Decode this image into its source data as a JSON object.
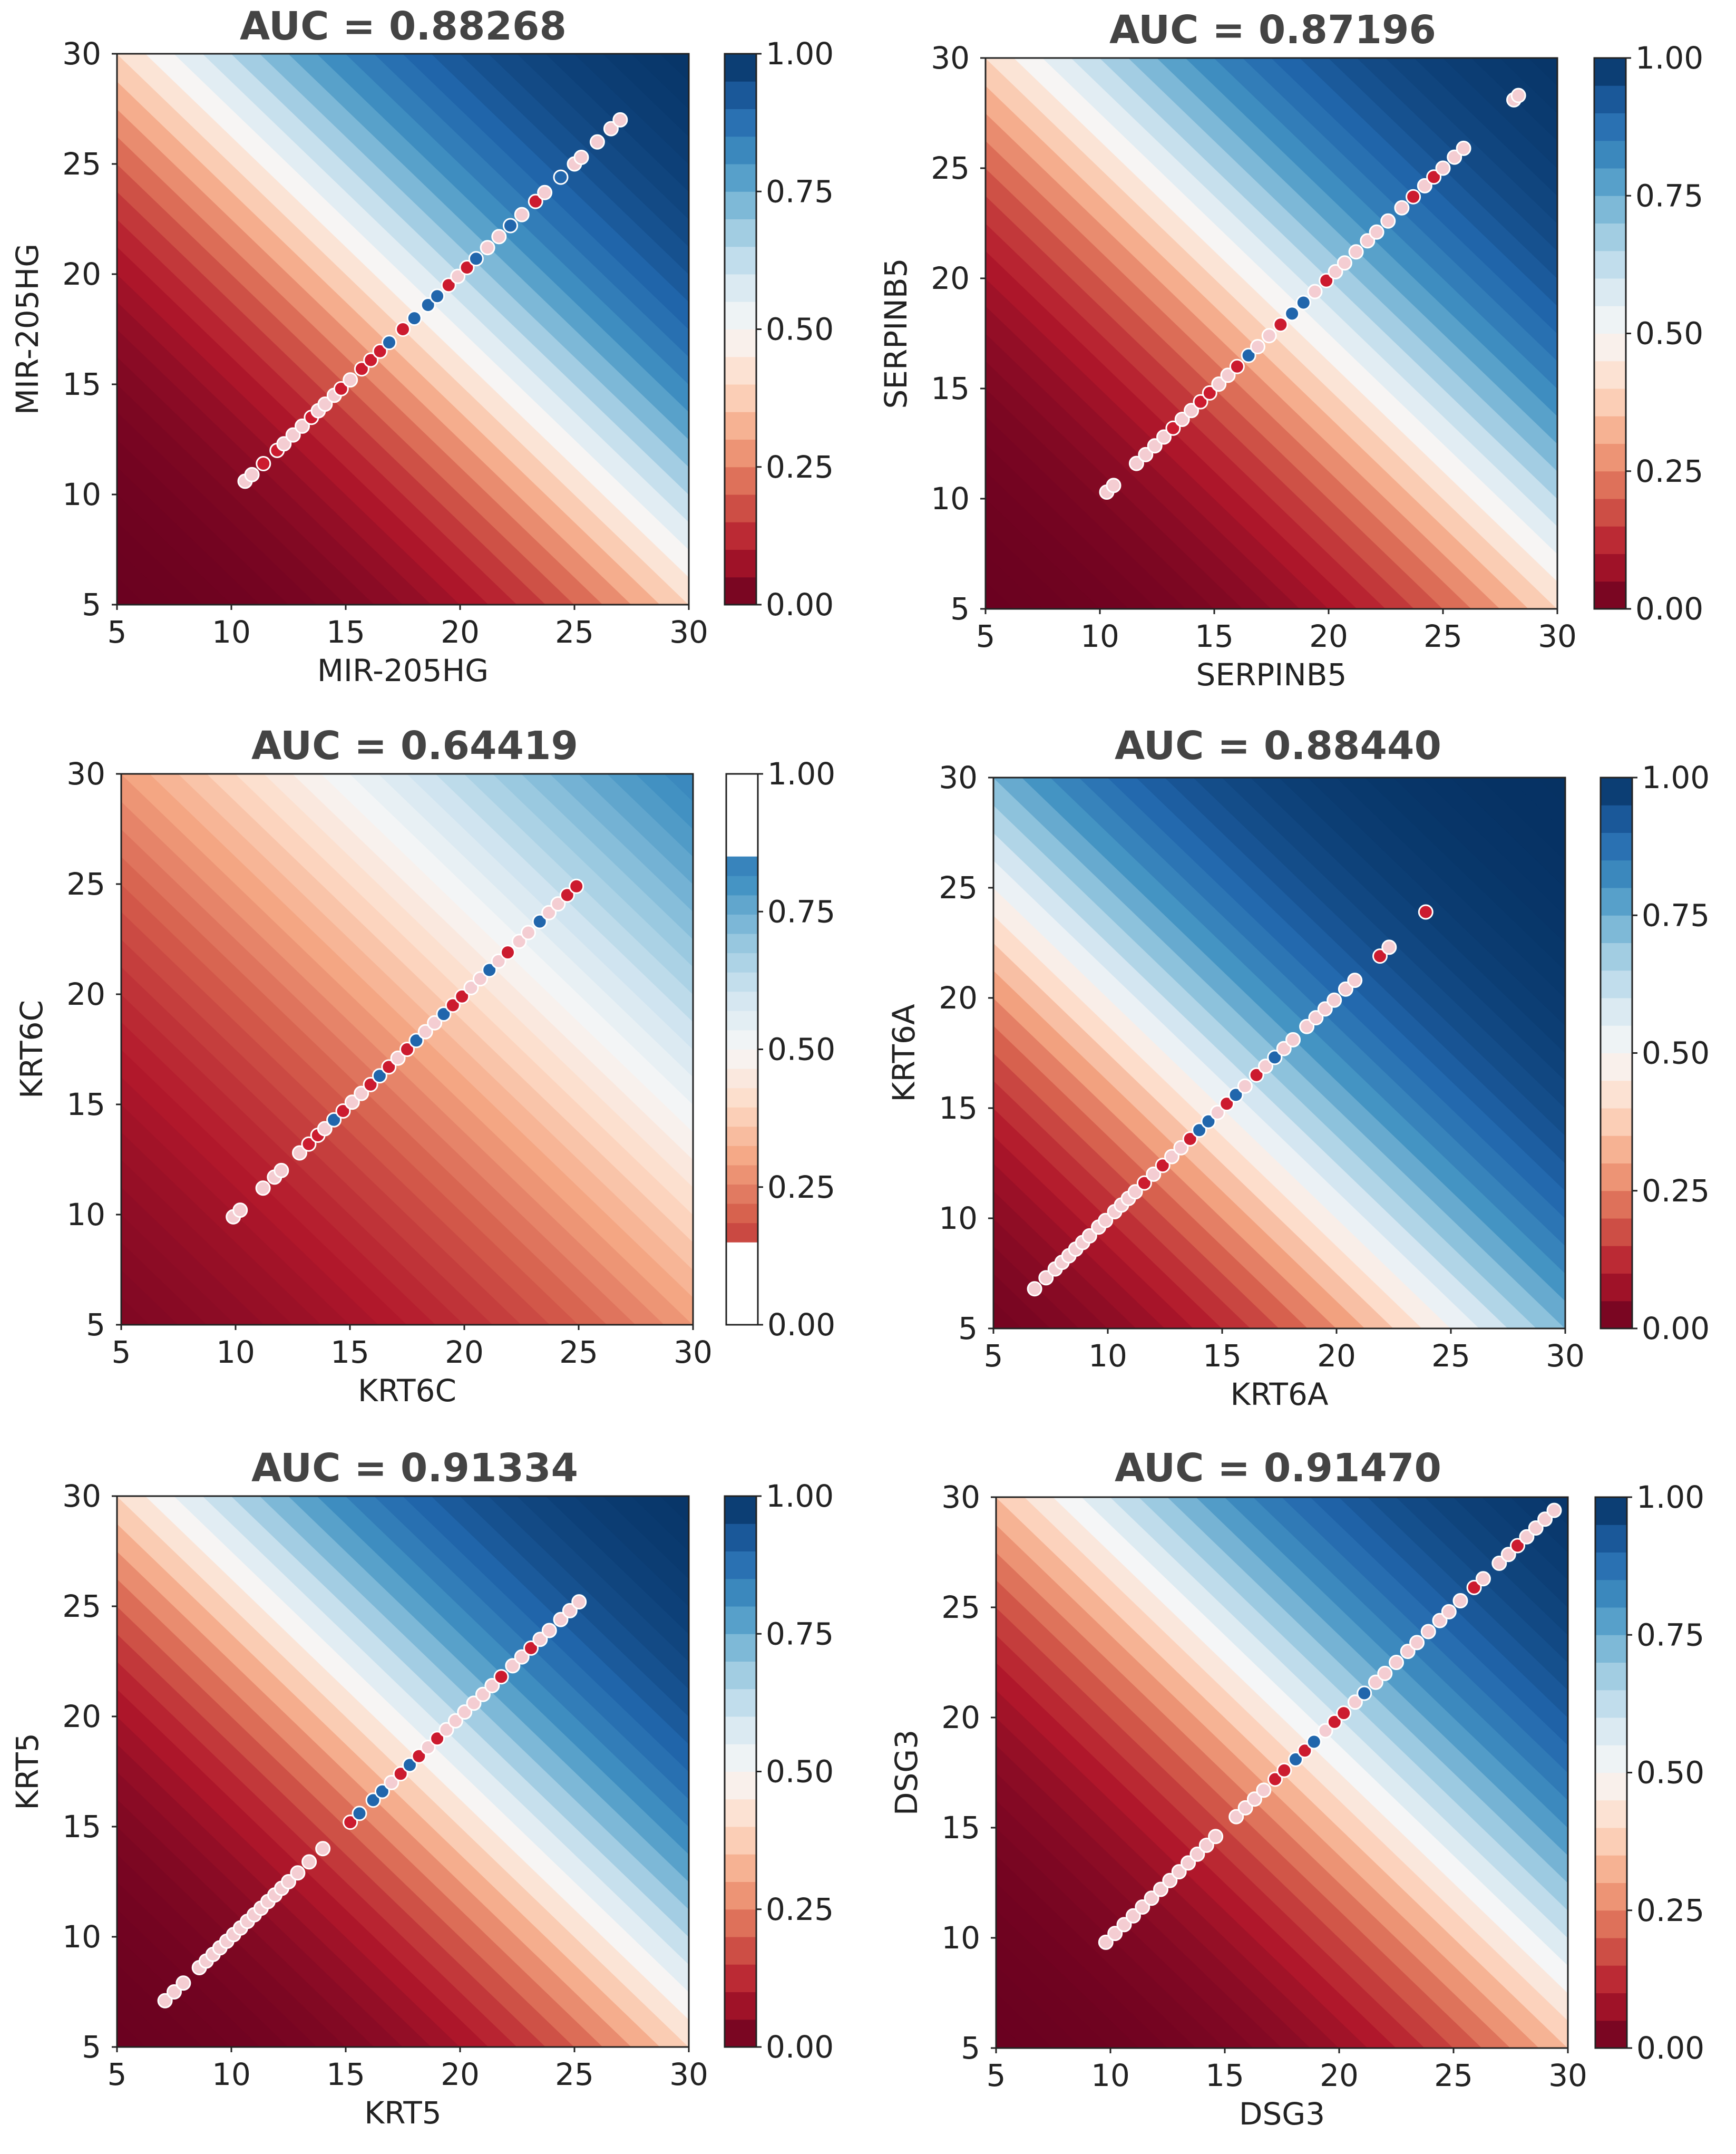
{
  "figure": {
    "colorbar_ticks": [
      "0.00",
      "0.25",
      "0.50",
      "0.75",
      "1.00"
    ],
    "colors": {
      "low": "#67001f",
      "mid": "#f7f7f7",
      "high": "#053061",
      "edge": "#ffffff",
      "text": "#222222",
      "title": "#444444"
    }
  },
  "chart_data": [
    {
      "type": "scatter",
      "subtype": "logistic-probability-contour",
      "title": "AUC = 0.88268",
      "auc": 0.88268,
      "xlabel": "MIR-205HG",
      "ylabel": "MIR-205HG",
      "xlim": [
        5,
        30
      ],
      "ylim": [
        5,
        30
      ],
      "xticks": [
        5,
        10,
        15,
        20,
        25,
        30
      ],
      "yticks": [
        5,
        10,
        15,
        20,
        25,
        30
      ],
      "probability_levels": [
        0,
        0.25,
        0.5,
        0.75,
        1
      ],
      "p50_line_sum": 37,
      "gradient_scale": 5.0,
      "colorbar_range": [
        0,
        1
      ],
      "colorbar_ticks": [
        "0.00",
        "0.25",
        "0.50",
        "0.75",
        "1.00"
      ],
      "points": [
        [
          10.6,
          "w"
        ],
        [
          10.9,
          "w"
        ],
        [
          11.4,
          "r"
        ],
        [
          12.0,
          "r"
        ],
        [
          12.3,
          "w"
        ],
        [
          12.7,
          "w"
        ],
        [
          13.1,
          "w"
        ],
        [
          13.5,
          "r"
        ],
        [
          13.8,
          "w"
        ],
        [
          14.1,
          "w"
        ],
        [
          14.5,
          "w"
        ],
        [
          14.8,
          "r"
        ],
        [
          15.2,
          "w"
        ],
        [
          15.7,
          "r"
        ],
        [
          16.1,
          "r"
        ],
        [
          16.5,
          "r"
        ],
        [
          16.9,
          "b"
        ],
        [
          17.5,
          "r"
        ],
        [
          18.0,
          "b"
        ],
        [
          18.6,
          "b"
        ],
        [
          19.0,
          "b"
        ],
        [
          19.5,
          "r"
        ],
        [
          19.9,
          "w"
        ],
        [
          20.3,
          "r"
        ],
        [
          20.7,
          "b"
        ],
        [
          21.2,
          "w"
        ],
        [
          21.7,
          "w"
        ],
        [
          22.2,
          "b"
        ],
        [
          22.7,
          "w"
        ],
        [
          23.3,
          "r"
        ],
        [
          23.7,
          "w"
        ],
        [
          24.4,
          "b"
        ],
        [
          25.0,
          "w"
        ],
        [
          25.3,
          "w"
        ],
        [
          26.0,
          "w"
        ],
        [
          26.6,
          "w"
        ],
        [
          27.0,
          "w"
        ]
      ]
    },
    {
      "type": "scatter",
      "subtype": "logistic-probability-contour",
      "title": "AUC = 0.87196",
      "auc": 0.87196,
      "xlabel": "SERPINB5",
      "ylabel": "SERPINB5",
      "xlim": [
        5,
        30
      ],
      "ylim": [
        5,
        30
      ],
      "xticks": [
        5,
        10,
        15,
        20,
        25,
        30
      ],
      "yticks": [
        5,
        10,
        15,
        20,
        25,
        30
      ],
      "probability_levels": [
        0,
        0.25,
        0.5,
        0.75,
        1
      ],
      "p50_line_sum": 37,
      "gradient_scale": 5.0,
      "colorbar_range": [
        0,
        1
      ],
      "colorbar_ticks": [
        "0.00",
        "0.25",
        "0.50",
        "0.75",
        "1.00"
      ],
      "points": [
        [
          10.3,
          "w"
        ],
        [
          10.6,
          "w"
        ],
        [
          11.6,
          "w"
        ],
        [
          12.0,
          "w"
        ],
        [
          12.4,
          "w"
        ],
        [
          12.8,
          "w"
        ],
        [
          13.2,
          "r"
        ],
        [
          13.6,
          "w"
        ],
        [
          14.0,
          "w"
        ],
        [
          14.4,
          "r"
        ],
        [
          14.8,
          "r"
        ],
        [
          15.2,
          "w"
        ],
        [
          15.6,
          "w"
        ],
        [
          16.0,
          "r"
        ],
        [
          16.5,
          "b"
        ],
        [
          16.9,
          "w"
        ],
        [
          17.4,
          "w"
        ],
        [
          17.9,
          "r"
        ],
        [
          18.4,
          "b"
        ],
        [
          18.9,
          "b"
        ],
        [
          19.4,
          "w"
        ],
        [
          19.9,
          "r"
        ],
        [
          20.3,
          "w"
        ],
        [
          20.7,
          "w"
        ],
        [
          21.2,
          "w"
        ],
        [
          21.7,
          "w"
        ],
        [
          22.1,
          "w"
        ],
        [
          22.6,
          "w"
        ],
        [
          23.2,
          "w"
        ],
        [
          23.7,
          "r"
        ],
        [
          24.2,
          "w"
        ],
        [
          24.6,
          "r"
        ],
        [
          25.0,
          "w"
        ],
        [
          25.5,
          "w"
        ],
        [
          25.9,
          "w"
        ],
        [
          28.1,
          "w"
        ],
        [
          28.3,
          "w"
        ]
      ]
    },
    {
      "type": "scatter",
      "subtype": "logistic-probability-contour",
      "title": "AUC = 0.64419",
      "auc": 0.64419,
      "xlabel": "KRT6C",
      "ylabel": "KRT6C",
      "xlim": [
        5,
        30
      ],
      "ylim": [
        5,
        30
      ],
      "xticks": [
        5,
        10,
        15,
        20,
        25,
        30
      ],
      "yticks": [
        5,
        10,
        15,
        20,
        25,
        30
      ],
      "probability_levels": [
        0,
        0.25,
        0.5,
        0.75,
        1
      ],
      "p50_line_sum": 44,
      "gradient_scale": 10.0,
      "colorbar_range": [
        0.15,
        0.85
      ],
      "colorbar_ticks": [
        "0.00",
        "0.25",
        "0.50",
        "0.75",
        "1.00"
      ],
      "points": [
        [
          9.9,
          "w"
        ],
        [
          10.2,
          "w"
        ],
        [
          11.2,
          "w"
        ],
        [
          11.7,
          "w"
        ],
        [
          12.0,
          "w"
        ],
        [
          12.8,
          "w"
        ],
        [
          13.2,
          "r"
        ],
        [
          13.6,
          "r"
        ],
        [
          13.9,
          "w"
        ],
        [
          14.3,
          "b"
        ],
        [
          14.7,
          "r"
        ],
        [
          15.1,
          "w"
        ],
        [
          15.5,
          "w"
        ],
        [
          15.9,
          "r"
        ],
        [
          16.3,
          "b"
        ],
        [
          16.7,
          "r"
        ],
        [
          17.1,
          "w"
        ],
        [
          17.5,
          "r"
        ],
        [
          17.9,
          "b"
        ],
        [
          18.3,
          "w"
        ],
        [
          18.7,
          "w"
        ],
        [
          19.1,
          "b"
        ],
        [
          19.5,
          "r"
        ],
        [
          19.9,
          "r"
        ],
        [
          20.3,
          "w"
        ],
        [
          20.7,
          "w"
        ],
        [
          21.1,
          "b"
        ],
        [
          21.5,
          "w"
        ],
        [
          21.9,
          "r"
        ],
        [
          22.4,
          "w"
        ],
        [
          22.8,
          "w"
        ],
        [
          23.3,
          "b"
        ],
        [
          23.7,
          "w"
        ],
        [
          24.1,
          "w"
        ],
        [
          24.5,
          "r"
        ],
        [
          24.9,
          "r"
        ]
      ]
    },
    {
      "type": "scatter",
      "subtype": "logistic-probability-contour",
      "title": "AUC = 0.88440",
      "auc": 0.8844,
      "xlabel": "KRT6A",
      "ylabel": "KRT6A",
      "xlim": [
        5,
        30
      ],
      "ylim": [
        5,
        30
      ],
      "xticks": [
        5,
        10,
        15,
        20,
        25,
        30
      ],
      "yticks": [
        5,
        10,
        15,
        20,
        25,
        30
      ],
      "probability_levels": [
        0,
        0.25,
        0.5,
        0.75,
        1
      ],
      "p50_line_sum": 30,
      "gradient_scale": 5.0,
      "colorbar_range": [
        0,
        1
      ],
      "colorbar_ticks": [
        "0.00",
        "0.25",
        "0.50",
        "0.75",
        "1.00"
      ],
      "points": [
        [
          6.8,
          "w"
        ],
        [
          7.3,
          "w"
        ],
        [
          7.7,
          "w"
        ],
        [
          8.0,
          "w"
        ],
        [
          8.3,
          "w"
        ],
        [
          8.6,
          "w"
        ],
        [
          8.9,
          "w"
        ],
        [
          9.2,
          "w"
        ],
        [
          9.6,
          "w"
        ],
        [
          9.9,
          "w"
        ],
        [
          10.3,
          "w"
        ],
        [
          10.6,
          "w"
        ],
        [
          10.9,
          "w"
        ],
        [
          11.2,
          "w"
        ],
        [
          11.6,
          "r"
        ],
        [
          12.0,
          "w"
        ],
        [
          12.4,
          "r"
        ],
        [
          12.8,
          "w"
        ],
        [
          13.2,
          "w"
        ],
        [
          13.6,
          "r"
        ],
        [
          14.0,
          "b"
        ],
        [
          14.4,
          "b"
        ],
        [
          14.8,
          "w"
        ],
        [
          15.2,
          "r"
        ],
        [
          15.6,
          "b"
        ],
        [
          16.0,
          "w"
        ],
        [
          16.5,
          "r"
        ],
        [
          16.9,
          "w"
        ],
        [
          17.3,
          "b"
        ],
        [
          17.7,
          "w"
        ],
        [
          18.1,
          "w"
        ],
        [
          18.7,
          "w"
        ],
        [
          19.1,
          "w"
        ],
        [
          19.5,
          "w"
        ],
        [
          19.9,
          "w"
        ],
        [
          20.4,
          "w"
        ],
        [
          20.8,
          "w"
        ],
        [
          21.9,
          "r"
        ],
        [
          22.3,
          "w"
        ],
        [
          23.9,
          "r"
        ]
      ]
    },
    {
      "type": "scatter",
      "subtype": "logistic-probability-contour",
      "title": "AUC = 0.91334",
      "auc": 0.91334,
      "xlabel": "KRT5",
      "ylabel": "KRT5",
      "xlim": [
        5,
        30
      ],
      "ylim": [
        5,
        30
      ],
      "xticks": [
        5,
        10,
        15,
        20,
        25,
        30
      ],
      "yticks": [
        5,
        10,
        15,
        20,
        25,
        30
      ],
      "probability_levels": [
        0,
        0.25,
        0.5,
        0.75,
        1
      ],
      "p50_line_sum": 37,
      "gradient_scale": 5.0,
      "colorbar_range": [
        0,
        1
      ],
      "colorbar_ticks": [
        "0.00",
        "0.25",
        "0.50",
        "0.75",
        "1.00"
      ],
      "points": [
        [
          7.1,
          "w"
        ],
        [
          7.5,
          "w"
        ],
        [
          7.9,
          "w"
        ],
        [
          8.6,
          "w"
        ],
        [
          8.9,
          "w"
        ],
        [
          9.2,
          "w"
        ],
        [
          9.5,
          "w"
        ],
        [
          9.8,
          "w"
        ],
        [
          10.1,
          "w"
        ],
        [
          10.4,
          "w"
        ],
        [
          10.7,
          "w"
        ],
        [
          11.0,
          "w"
        ],
        [
          11.3,
          "w"
        ],
        [
          11.6,
          "w"
        ],
        [
          11.9,
          "w"
        ],
        [
          12.2,
          "w"
        ],
        [
          12.5,
          "w"
        ],
        [
          12.9,
          "w"
        ],
        [
          13.4,
          "w"
        ],
        [
          14.0,
          "w"
        ],
        [
          15.2,
          "r"
        ],
        [
          15.6,
          "b"
        ],
        [
          16.2,
          "b"
        ],
        [
          16.6,
          "b"
        ],
        [
          17.0,
          "w"
        ],
        [
          17.4,
          "r"
        ],
        [
          17.8,
          "b"
        ],
        [
          18.2,
          "r"
        ],
        [
          18.6,
          "w"
        ],
        [
          19.0,
          "r"
        ],
        [
          19.4,
          "w"
        ],
        [
          19.8,
          "w"
        ],
        [
          20.2,
          "w"
        ],
        [
          20.6,
          "w"
        ],
        [
          21.0,
          "w"
        ],
        [
          21.4,
          "w"
        ],
        [
          21.8,
          "r"
        ],
        [
          22.3,
          "w"
        ],
        [
          22.7,
          "w"
        ],
        [
          23.1,
          "r"
        ],
        [
          23.5,
          "w"
        ],
        [
          23.9,
          "w"
        ],
        [
          24.4,
          "w"
        ],
        [
          24.8,
          "w"
        ],
        [
          25.2,
          "w"
        ]
      ]
    },
    {
      "type": "scatter",
      "subtype": "logistic-probability-contour",
      "title": "AUC = 0.91470",
      "auc": 0.9147,
      "xlabel": "DSG3",
      "ylabel": "DSG3",
      "xlim": [
        5,
        30
      ],
      "ylim": [
        5,
        30
      ],
      "xticks": [
        5,
        10,
        15,
        20,
        25,
        30
      ],
      "yticks": [
        5,
        10,
        15,
        20,
        25,
        30
      ],
      "probability_levels": [
        0,
        0.25,
        0.5,
        0.75,
        1
      ],
      "p50_line_sum": 38,
      "gradient_scale": 5.0,
      "colorbar_range": [
        0,
        1
      ],
      "colorbar_ticks": [
        "0.00",
        "0.25",
        "0.50",
        "0.75",
        "1.00"
      ],
      "points": [
        [
          9.8,
          "w"
        ],
        [
          10.2,
          "w"
        ],
        [
          10.6,
          "w"
        ],
        [
          11.0,
          "w"
        ],
        [
          11.4,
          "w"
        ],
        [
          11.8,
          "w"
        ],
        [
          12.2,
          "w"
        ],
        [
          12.6,
          "w"
        ],
        [
          13.0,
          "w"
        ],
        [
          13.4,
          "w"
        ],
        [
          13.8,
          "w"
        ],
        [
          14.2,
          "w"
        ],
        [
          14.6,
          "w"
        ],
        [
          15.5,
          "w"
        ],
        [
          15.9,
          "w"
        ],
        [
          16.3,
          "w"
        ],
        [
          16.7,
          "w"
        ],
        [
          17.2,
          "r"
        ],
        [
          17.6,
          "r"
        ],
        [
          18.1,
          "b"
        ],
        [
          18.5,
          "r"
        ],
        [
          18.9,
          "b"
        ],
        [
          19.4,
          "w"
        ],
        [
          19.8,
          "r"
        ],
        [
          20.2,
          "r"
        ],
        [
          20.7,
          "w"
        ],
        [
          21.1,
          "b"
        ],
        [
          21.6,
          "w"
        ],
        [
          22.0,
          "w"
        ],
        [
          22.5,
          "w"
        ],
        [
          23.0,
          "w"
        ],
        [
          23.4,
          "w"
        ],
        [
          23.9,
          "w"
        ],
        [
          24.4,
          "w"
        ],
        [
          24.8,
          "w"
        ],
        [
          25.3,
          "w"
        ],
        [
          25.9,
          "r"
        ],
        [
          26.3,
          "w"
        ],
        [
          27.0,
          "w"
        ],
        [
          27.4,
          "w"
        ],
        [
          27.8,
          "r"
        ],
        [
          28.2,
          "w"
        ],
        [
          28.6,
          "w"
        ],
        [
          29.0,
          "w"
        ],
        [
          29.4,
          "w"
        ]
      ]
    }
  ]
}
